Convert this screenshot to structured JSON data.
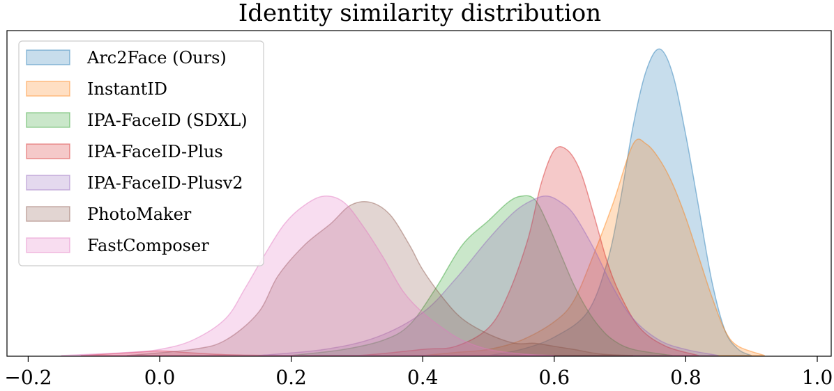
{
  "chart_data": {
    "type": "area",
    "title": "Identity similarity distribution",
    "xlabel": "",
    "ylabel": "",
    "xlim": [
      -0.22,
      1.08
    ],
    "x_ticks": [
      -0.2,
      0.0,
      0.2,
      0.4,
      0.6,
      0.8,
      1.0
    ],
    "x_tick_labels": [
      "−0.2",
      "0.0",
      "0.2",
      "0.4",
      "0.6",
      "0.8",
      "1.0"
    ],
    "y_ticks_visible": false,
    "grid": false,
    "legend_position": "upper-left",
    "series": [
      {
        "name": "Arc2Face (Ours)",
        "color": "#1f77b4",
        "x": [
          0.5,
          0.55,
          0.6,
          0.65,
          0.68,
          0.7,
          0.72,
          0.74,
          0.76,
          0.78,
          0.8,
          0.82,
          0.84,
          0.86,
          0.88,
          0.9
        ],
        "density": [
          0,
          0.02,
          0.06,
          0.14,
          0.3,
          0.5,
          0.75,
          0.93,
          1.0,
          0.92,
          0.72,
          0.48,
          0.24,
          0.08,
          0.02,
          0
        ]
      },
      {
        "name": "InstantID",
        "color": "#ff7f0e",
        "x": [
          0.4,
          0.45,
          0.5,
          0.55,
          0.6,
          0.63,
          0.66,
          0.69,
          0.72,
          0.74,
          0.76,
          0.78,
          0.8,
          0.82,
          0.84,
          0.86,
          0.88,
          0.92
        ],
        "density": [
          0,
          0.01,
          0.02,
          0.05,
          0.11,
          0.18,
          0.33,
          0.5,
          0.69,
          0.69,
          0.64,
          0.56,
          0.45,
          0.32,
          0.19,
          0.08,
          0.03,
          0
        ]
      },
      {
        "name": "IPA-FaceID (SDXL)",
        "color": "#2ca02c",
        "x": [
          0.2,
          0.28,
          0.34,
          0.38,
          0.42,
          0.46,
          0.5,
          0.53,
          0.55,
          0.57,
          0.59,
          0.61,
          0.63,
          0.65,
          0.67,
          0.69,
          0.72,
          0.78
        ],
        "density": [
          0,
          0.02,
          0.05,
          0.1,
          0.22,
          0.36,
          0.44,
          0.5,
          0.52,
          0.51,
          0.43,
          0.33,
          0.23,
          0.15,
          0.09,
          0.05,
          0.02,
          0
        ]
      },
      {
        "name": "IPA-FaceID-Plus",
        "color": "#d62728",
        "x": [
          -0.12,
          -0.04,
          0.0,
          0.04,
          0.1,
          0.2,
          0.3,
          0.4,
          0.45,
          0.5,
          0.53,
          0.56,
          0.58,
          0.6,
          0.62,
          0.64,
          0.66,
          0.68,
          0.7,
          0.73,
          0.77,
          0.82
        ],
        "density": [
          0,
          0.01,
          0.015,
          0.01,
          0.003,
          0,
          0,
          0.02,
          0.03,
          0.09,
          0.2,
          0.38,
          0.56,
          0.67,
          0.67,
          0.6,
          0.46,
          0.31,
          0.2,
          0.09,
          0.03,
          0
        ]
      },
      {
        "name": "IPA-FaceID-Plusv2",
        "color": "#9467bd",
        "x": [
          0.15,
          0.25,
          0.33,
          0.4,
          0.45,
          0.5,
          0.54,
          0.57,
          0.59,
          0.61,
          0.63,
          0.66,
          0.69,
          0.72,
          0.76,
          0.8,
          0.85
        ],
        "density": [
          0,
          0.02,
          0.06,
          0.14,
          0.25,
          0.38,
          0.47,
          0.51,
          0.52,
          0.5,
          0.46,
          0.35,
          0.22,
          0.12,
          0.05,
          0.02,
          0
        ]
      },
      {
        "name": "PhotoMaker",
        "color": "#8c564b",
        "x": [
          -0.05,
          0.05,
          0.1,
          0.15,
          0.18,
          0.22,
          0.26,
          0.29,
          0.32,
          0.35,
          0.38,
          0.4,
          0.43,
          0.46,
          0.5,
          0.54,
          0.57,
          0.6,
          0.63,
          0.67,
          0.72
        ],
        "density": [
          0,
          0.02,
          0.05,
          0.14,
          0.26,
          0.36,
          0.43,
          0.49,
          0.5,
          0.46,
          0.36,
          0.28,
          0.19,
          0.12,
          0.07,
          0.04,
          0.04,
          0.03,
          0.02,
          0.005,
          0
        ]
      },
      {
        "name": "FastComposer",
        "color": "#e377c2",
        "x": [
          -0.15,
          -0.05,
          0.0,
          0.05,
          0.1,
          0.13,
          0.16,
          0.19,
          0.22,
          0.25,
          0.28,
          0.31,
          0.34,
          0.37,
          0.4,
          0.43,
          0.46,
          0.5,
          0.55,
          0.6
        ],
        "density": [
          0,
          0.01,
          0.02,
          0.05,
          0.12,
          0.22,
          0.33,
          0.43,
          0.49,
          0.52,
          0.5,
          0.42,
          0.32,
          0.21,
          0.14,
          0.09,
          0.05,
          0.02,
          0.005,
          0
        ]
      }
    ]
  }
}
